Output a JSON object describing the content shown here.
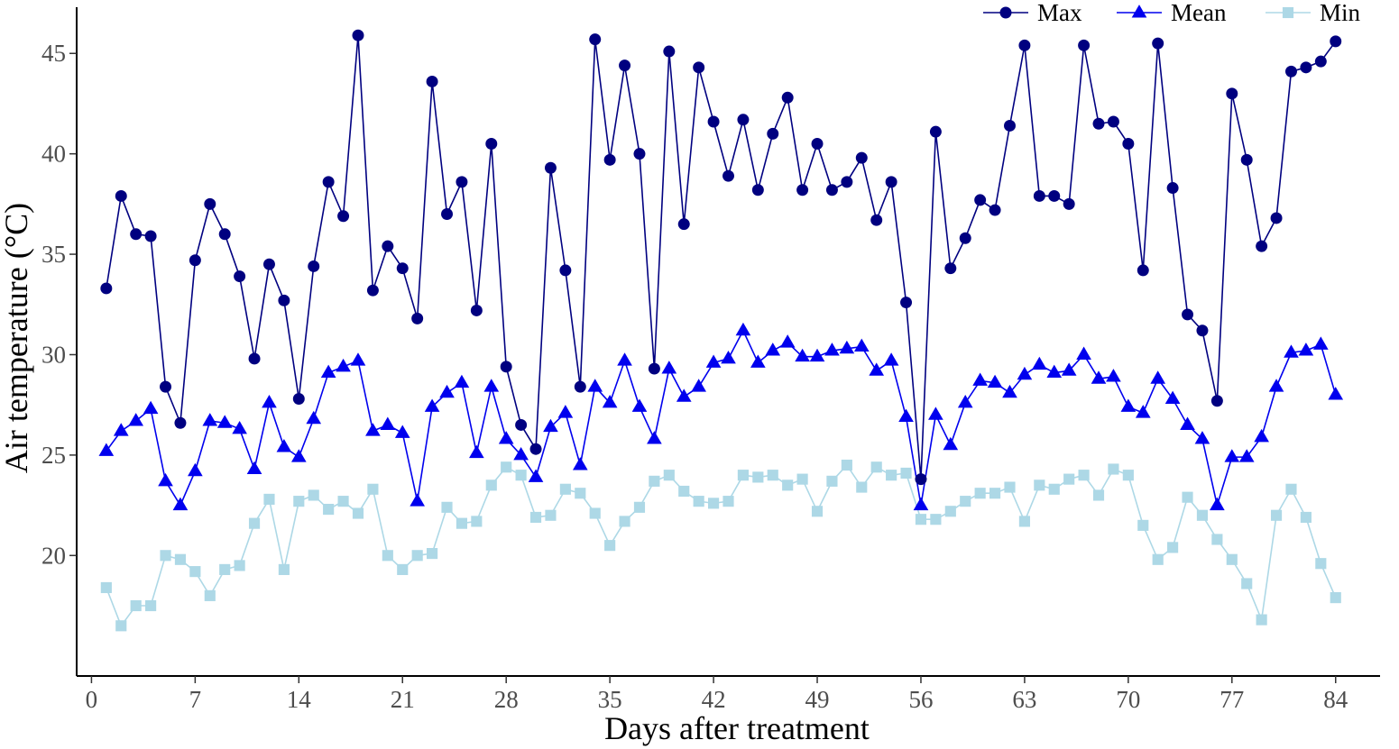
{
  "chart_data": {
    "type": "line",
    "xlabel": "Days after treatment",
    "ylabel": "Air temperature (°C)",
    "xlim": [
      -1,
      87
    ],
    "ylim": [
      14,
      47.3
    ],
    "x_ticks": [
      0,
      7,
      14,
      21,
      28,
      35,
      42,
      49,
      56,
      63,
      70,
      77,
      84
    ],
    "y_ticks": [
      20,
      25,
      30,
      35,
      40,
      45
    ],
    "grid": false,
    "legend_position": "top-right",
    "x": [
      1,
      2,
      3,
      4,
      5,
      6,
      7,
      8,
      9,
      10,
      11,
      12,
      13,
      14,
      15,
      16,
      17,
      18,
      19,
      20,
      21,
      22,
      23,
      24,
      25,
      26,
      27,
      28,
      29,
      30,
      31,
      32,
      33,
      34,
      35,
      36,
      37,
      38,
      39,
      40,
      41,
      42,
      43,
      44,
      45,
      46,
      47,
      48,
      49,
      50,
      51,
      52,
      53,
      54,
      55,
      56,
      57,
      58,
      59,
      60,
      61,
      62,
      63,
      64,
      65,
      66,
      67,
      68,
      69,
      70,
      71,
      72,
      73,
      74,
      75,
      76,
      77,
      78,
      79,
      80,
      81,
      82,
      83,
      84
    ],
    "series": [
      {
        "name": "Max",
        "marker": "circle",
        "color": "#000080",
        "values": [
          33.3,
          37.9,
          36.0,
          35.9,
          28.4,
          26.6,
          34.7,
          37.5,
          36.0,
          33.9,
          29.8,
          34.5,
          32.7,
          27.8,
          34.4,
          38.6,
          36.9,
          45.9,
          33.2,
          35.4,
          34.3,
          31.8,
          43.6,
          37.0,
          38.6,
          32.2,
          40.5,
          29.4,
          26.5,
          25.3,
          39.3,
          34.2,
          28.4,
          45.7,
          39.7,
          44.4,
          40.0,
          29.3,
          45.1,
          36.5,
          44.3,
          41.6,
          38.9,
          41.7,
          38.2,
          41.0,
          42.8,
          38.2,
          40.5,
          38.2,
          38.6,
          39.8,
          36.7,
          38.6,
          32.6,
          23.8,
          41.1,
          34.3,
          35.8,
          37.7,
          37.2,
          41.4,
          45.4,
          37.9,
          37.9,
          37.5,
          45.4,
          41.5,
          41.6,
          40.5,
          34.2,
          45.5,
          38.3,
          32.0,
          31.2,
          27.7,
          43.0,
          39.7,
          35.4,
          36.8,
          44.1,
          44.3,
          44.6,
          45.6
        ]
      },
      {
        "name": "Mean",
        "marker": "triangle",
        "color": "#0000ee",
        "values": [
          25.2,
          26.2,
          26.7,
          27.3,
          23.7,
          22.5,
          24.2,
          26.7,
          26.6,
          26.3,
          24.3,
          27.6,
          25.4,
          24.9,
          26.8,
          29.1,
          29.4,
          29.7,
          26.2,
          26.5,
          26.1,
          22.7,
          27.4,
          28.1,
          28.6,
          25.1,
          28.4,
          25.8,
          25.0,
          23.9,
          26.4,
          27.1,
          24.5,
          28.4,
          27.6,
          29.7,
          27.4,
          25.8,
          29.3,
          27.9,
          28.4,
          29.6,
          29.8,
          31.2,
          29.6,
          30.2,
          30.6,
          29.9,
          29.9,
          30.2,
          30.3,
          30.4,
          29.2,
          29.7,
          26.9,
          22.5,
          27.0,
          25.5,
          27.6,
          28.7,
          28.6,
          28.1,
          29.0,
          29.5,
          29.1,
          29.2,
          30.0,
          28.8,
          28.9,
          27.4,
          27.1,
          28.8,
          27.8,
          26.5,
          25.8,
          22.5,
          24.9,
          24.9,
          25.9,
          28.4,
          30.1,
          30.2,
          30.5,
          28.0
        ]
      },
      {
        "name": "Min",
        "marker": "square",
        "color": "#add8e6",
        "values": [
          18.4,
          16.5,
          17.5,
          17.5,
          20.0,
          19.8,
          19.2,
          18.0,
          19.3,
          19.5,
          21.6,
          22.8,
          19.3,
          22.7,
          23.0,
          22.3,
          22.7,
          22.1,
          23.3,
          20.0,
          19.3,
          20.0,
          20.1,
          22.4,
          21.6,
          21.7,
          23.5,
          24.4,
          24.0,
          21.9,
          22.0,
          23.3,
          23.1,
          22.1,
          20.5,
          21.7,
          22.4,
          23.7,
          24.0,
          23.2,
          22.7,
          22.6,
          22.7,
          24.0,
          23.9,
          24.0,
          23.5,
          23.8,
          22.2,
          23.7,
          24.5,
          23.4,
          24.4,
          24.0,
          24.1,
          21.8,
          21.8,
          22.2,
          22.7,
          23.1,
          23.1,
          23.4,
          21.7,
          23.5,
          23.3,
          23.8,
          24.0,
          23.0,
          24.3,
          24.0,
          21.5,
          19.8,
          20.4,
          22.9,
          22.0,
          20.8,
          19.8,
          18.6,
          16.8,
          22.0,
          23.3,
          21.9,
          19.6,
          17.9
        ]
      }
    ]
  }
}
